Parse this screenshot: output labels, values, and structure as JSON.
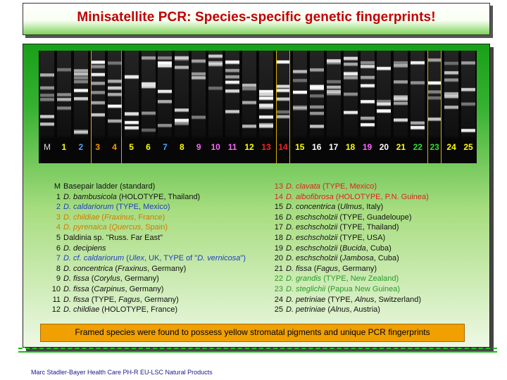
{
  "title": "Minisatellite PCR: Species-specific genetic fingerprints!",
  "lanes": [
    {
      "label": "M",
      "color": "#ffffff"
    },
    {
      "label": "1",
      "color": "#ffff00"
    },
    {
      "label": "2",
      "color": "#4da6ff"
    },
    {
      "label": "3",
      "color": "#ff9900"
    },
    {
      "label": "4",
      "color": "#ff9900"
    },
    {
      "label": "5",
      "color": "#ffff00"
    },
    {
      "label": "6",
      "color": "#ffff00"
    },
    {
      "label": "7",
      "color": "#4da6ff"
    },
    {
      "label": "8",
      "color": "#ffff00"
    },
    {
      "label": "9",
      "color": "#ff66ff"
    },
    {
      "label": "10",
      "color": "#ff66ff"
    },
    {
      "label": "11",
      "color": "#ff66ff"
    },
    {
      "label": "12",
      "color": "#ffff00"
    },
    {
      "label": "13",
      "color": "#ff2020"
    },
    {
      "label": "14",
      "color": "#ff2020"
    },
    {
      "label": "15",
      "color": "#ffff00"
    },
    {
      "label": "16",
      "color": "#ffffff"
    },
    {
      "label": "17",
      "color": "#ffffff"
    },
    {
      "label": "18",
      "color": "#ffff00"
    },
    {
      "label": "19",
      "color": "#ff66ff"
    },
    {
      "label": "20",
      "color": "#ffffff"
    },
    {
      "label": "21",
      "color": "#ffff00"
    },
    {
      "label": "22",
      "color": "#33dd33"
    },
    {
      "label": "23",
      "color": "#33dd33"
    },
    {
      "label": "24",
      "color": "#ffff00"
    },
    {
      "label": "25",
      "color": "#ffff00"
    }
  ],
  "legend_left": [
    {
      "num": "M",
      "parts": [
        {
          "t": "Basepair ladder (standard)"
        }
      ],
      "color": "#111111"
    },
    {
      "num": "1",
      "parts": [
        {
          "t": "D. bambusicola",
          "i": true
        },
        {
          "t": " (HOLOTYPE, Thailand)"
        }
      ],
      "color": "#111111"
    },
    {
      "num": "2",
      "parts": [
        {
          "t": "D. caldariorum",
          "i": true
        },
        {
          "t": " (TYPE, Mexico)"
        }
      ],
      "color": "#1f3fbf"
    },
    {
      "num": "3",
      "parts": [
        {
          "t": "D. childiae",
          "i": true
        },
        {
          "t": " ("
        },
        {
          "t": "Fraxinus",
          "i": true
        },
        {
          "t": ", France)"
        }
      ],
      "color": "#d07a00"
    },
    {
      "num": "4",
      "parts": [
        {
          "t": "D. pyrenaica",
          "i": true
        },
        {
          "t": " ("
        },
        {
          "t": "Quercus",
          "i": true
        },
        {
          "t": ", Spain)"
        }
      ],
      "color": "#d07a00"
    },
    {
      "num": "5",
      "parts": [
        {
          "t": "Daldinia"
        },
        {
          "t": " sp. \"Russ. Far East\""
        }
      ],
      "color": "#111111"
    },
    {
      "num": "6",
      "parts": [
        {
          "t": "D. decipiens",
          "i": true
        }
      ],
      "color": "#111111"
    },
    {
      "num": "7",
      "parts": [
        {
          "t": "D. cf. caldariorum",
          "i": true
        },
        {
          "t": " ("
        },
        {
          "t": "Ulex",
          "i": true
        },
        {
          "t": ", UK, TYPE of \""
        },
        {
          "t": "D. vernicosa",
          "i": true
        },
        {
          "t": "\")"
        }
      ],
      "color": "#1f3fbf"
    },
    {
      "num": "8",
      "parts": [
        {
          "t": "D. concentrica",
          "i": true
        },
        {
          "t": " ("
        },
        {
          "t": "Fraxinus",
          "i": true
        },
        {
          "t": ", Germany)"
        }
      ],
      "color": "#111111"
    },
    {
      "num": "9",
      "parts": [
        {
          "t": "D. fissa",
          "i": true
        },
        {
          "t": " ("
        },
        {
          "t": "Corylus",
          "i": true
        },
        {
          "t": ", Germany)"
        }
      ],
      "color": "#111111"
    },
    {
      "num": "10",
      "parts": [
        {
          "t": "D. fissa",
          "i": true
        },
        {
          "t": " ("
        },
        {
          "t": "Carpinus",
          "i": true
        },
        {
          "t": ", Germany)"
        }
      ],
      "color": "#111111"
    },
    {
      "num": "11",
      "parts": [
        {
          "t": "D. fissa",
          "i": true
        },
        {
          "t": " (TYPE, "
        },
        {
          "t": "Fagus",
          "i": true
        },
        {
          "t": ", Germany)"
        }
      ],
      "color": "#111111"
    },
    {
      "num": "12",
      "parts": [
        {
          "t": "D. childiae",
          "i": true
        },
        {
          "t": " (HOLOTYPE, France)"
        }
      ],
      "color": "#111111"
    }
  ],
  "legend_right": [
    {
      "num": "13",
      "parts": [
        {
          "t": "D. clavata",
          "i": true
        },
        {
          "t": " (TYPE, Mexico)"
        }
      ],
      "color": "#e02020"
    },
    {
      "num": "14",
      "parts": [
        {
          "t": "D. albofibrosa",
          "i": true
        },
        {
          "t": " (HOLOTYPE, P.N. Guinea)"
        }
      ],
      "color": "#e02020"
    },
    {
      "num": "15",
      "parts": [
        {
          "t": "D. concentrica",
          "i": true
        },
        {
          "t": " ("
        },
        {
          "t": "Ulmus",
          "i": true
        },
        {
          "t": ", Italy)"
        }
      ],
      "color": "#111111"
    },
    {
      "num": "16",
      "parts": [
        {
          "t": "D. eschscholzii",
          "i": true
        },
        {
          "t": " (TYPE, Guadeloupe)"
        }
      ],
      "color": "#111111"
    },
    {
      "num": "17",
      "parts": [
        {
          "t": "D. eschscholzii",
          "i": true
        },
        {
          "t": " (TYPE, Thailand)"
        }
      ],
      "color": "#111111"
    },
    {
      "num": "18",
      "parts": [
        {
          "t": "D. eschscholzii",
          "i": true
        },
        {
          "t": " (TYPE, USA)"
        }
      ],
      "color": "#111111"
    },
    {
      "num": "19",
      "parts": [
        {
          "t": "D. eschscholzii",
          "i": true
        },
        {
          "t": " ("
        },
        {
          "t": "Bucida",
          "i": true
        },
        {
          "t": ", Cuba)"
        }
      ],
      "color": "#111111"
    },
    {
      "num": "20",
      "parts": [
        {
          "t": "D. eschscholzii",
          "i": true
        },
        {
          "t": " ("
        },
        {
          "t": "Jambosa",
          "i": true
        },
        {
          "t": ", Cuba)"
        }
      ],
      "color": "#111111"
    },
    {
      "num": "21",
      "parts": [
        {
          "t": "D. fissa",
          "i": true
        },
        {
          "t": " ("
        },
        {
          "t": "Fagus",
          "i": true
        },
        {
          "t": ", Germany)"
        }
      ],
      "color": "#111111"
    },
    {
      "num": "22",
      "parts": [
        {
          "t": "D. grandis",
          "i": true
        },
        {
          "t": " (TYPE, New Zealand)"
        }
      ],
      "color": "#2a9a2a"
    },
    {
      "num": "23",
      "parts": [
        {
          "t": "D. steglichii",
          "i": true
        },
        {
          "t": " (Papua New Guinea)"
        }
      ],
      "color": "#2a9a2a"
    },
    {
      "num": "24",
      "parts": [
        {
          "t": "D. petriniae",
          "i": true
        },
        {
          "t": " (TYPE, "
        },
        {
          "t": "Alnus",
          "i": true
        },
        {
          "t": ", Switzerland)"
        }
      ],
      "color": "#111111"
    },
    {
      "num": "25",
      "parts": [
        {
          "t": "D. petriniae",
          "i": true
        },
        {
          "t": " ("
        },
        {
          "t": "Alnus",
          "i": true
        },
        {
          "t": ", Austria)"
        }
      ],
      "color": "#111111"
    }
  ],
  "note": "Framed species were found to possess yellow stromatal pigments and unique PCR fingerprints",
  "footer": "Marc Stadler-Bayer Health Care PH-R EU-LSC Natural Products"
}
